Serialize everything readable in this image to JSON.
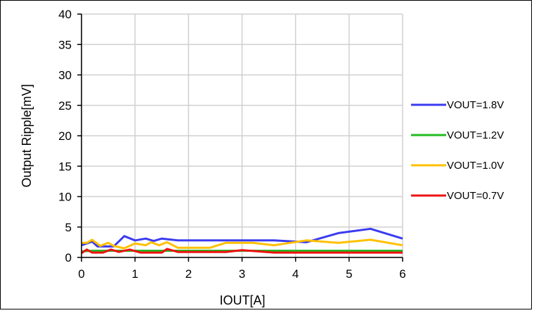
{
  "chart_data": {
    "type": "line",
    "title": "",
    "xlabel": "IOUT[A]",
    "ylabel": "Output Ripple[mV]",
    "xlim": [
      0,
      6
    ],
    "ylim": [
      0,
      40
    ],
    "xticks": [
      0,
      1,
      2,
      3,
      4,
      5,
      6
    ],
    "yticks": [
      0,
      5,
      10,
      15,
      20,
      25,
      30,
      35,
      40
    ],
    "grid": true,
    "legend_position": "right",
    "series": [
      {
        "name": "VOUT=1.8V",
        "color": "#3b3bf0",
        "points": [
          [
            0,
            2.0
          ],
          [
            0.2,
            2.6
          ],
          [
            0.3,
            1.8
          ],
          [
            0.6,
            1.8
          ],
          [
            0.8,
            3.5
          ],
          [
            1.0,
            2.8
          ],
          [
            1.2,
            3.1
          ],
          [
            1.35,
            2.7
          ],
          [
            1.5,
            3.1
          ],
          [
            1.8,
            2.8
          ],
          [
            2.5,
            2.8
          ],
          [
            3.6,
            2.8
          ],
          [
            4.2,
            2.5
          ],
          [
            4.8,
            4.0
          ],
          [
            5.4,
            4.7
          ],
          [
            6.0,
            3.1
          ]
        ]
      },
      {
        "name": "VOUT=1.2V",
        "color": "#22bb22",
        "points": [
          [
            0,
            1.0
          ],
          [
            0.2,
            1.1
          ],
          [
            1.0,
            1.1
          ],
          [
            3.0,
            1.1
          ],
          [
            6.0,
            1.1
          ]
        ]
      },
      {
        "name": "VOUT=1.0V",
        "color": "#ffc000",
        "points": [
          [
            0,
            2.4
          ],
          [
            0.1,
            2.4
          ],
          [
            0.2,
            2.9
          ],
          [
            0.35,
            1.9
          ],
          [
            0.5,
            2.4
          ],
          [
            0.6,
            1.9
          ],
          [
            0.8,
            1.5
          ],
          [
            1.0,
            2.3
          ],
          [
            1.2,
            2.0
          ],
          [
            1.3,
            2.5
          ],
          [
            1.45,
            2.0
          ],
          [
            1.6,
            2.5
          ],
          [
            1.8,
            1.6
          ],
          [
            2.4,
            1.6
          ],
          [
            2.7,
            2.4
          ],
          [
            3.2,
            2.4
          ],
          [
            3.6,
            2.0
          ],
          [
            4.2,
            2.8
          ],
          [
            4.8,
            2.4
          ],
          [
            5.4,
            2.9
          ],
          [
            6.0,
            2.0
          ]
        ]
      },
      {
        "name": "VOUT=0.7V",
        "color": "#ee1111",
        "points": [
          [
            0,
            0.7
          ],
          [
            0.1,
            1.3
          ],
          [
            0.2,
            0.8
          ],
          [
            0.4,
            0.8
          ],
          [
            0.55,
            1.3
          ],
          [
            0.7,
            0.9
          ],
          [
            0.9,
            1.3
          ],
          [
            1.1,
            0.8
          ],
          [
            1.5,
            0.8
          ],
          [
            1.6,
            1.4
          ],
          [
            1.8,
            0.9
          ],
          [
            2.2,
            0.9
          ],
          [
            2.7,
            0.9
          ],
          [
            3.0,
            1.2
          ],
          [
            3.6,
            0.8
          ],
          [
            6.0,
            0.8
          ]
        ]
      }
    ]
  }
}
